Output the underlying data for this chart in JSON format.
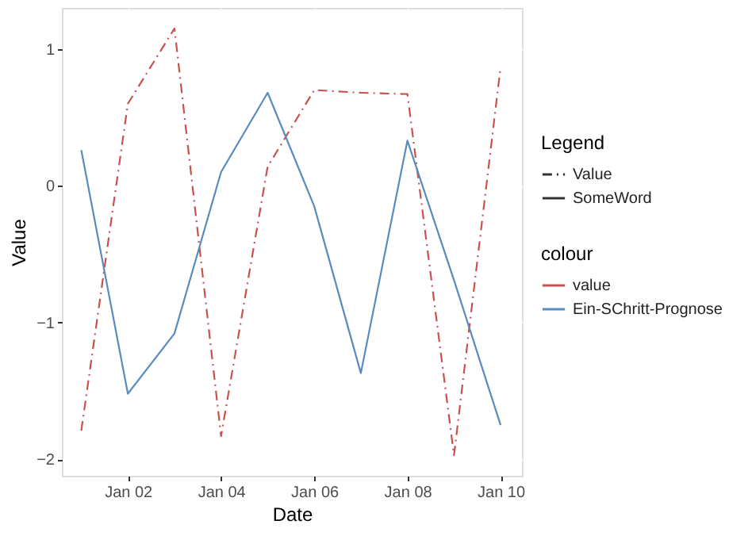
{
  "chart_data": {
    "type": "line",
    "xlabel": "Date",
    "ylabel": "Value",
    "legend_title": [
      "Legend",
      "colour"
    ],
    "annotations": [
      "Value",
      "SomeWord"
    ],
    "x": [
      "--01-01",
      "--01-02",
      "--01-03",
      "--01-04",
      "--01-05",
      "--01-06",
      "--01-07",
      "--01-08",
      "--01-09",
      "--01-10"
    ],
    "series": [
      {
        "name": "value",
        "line_style": "dashdot",
        "color": "#c8524f",
        "values": [
          -1.79,
          0.6,
          1.15,
          -1.83,
          0.14,
          0.7,
          0.68,
          0.67,
          -1.97,
          0.87
        ]
      },
      {
        "name": "Ein-SChritt-Prognose",
        "line_style": "solid",
        "color": "#5a8bbf",
        "values": [
          0.26,
          -1.52,
          -1.08,
          0.1,
          0.68,
          -0.15,
          -1.37,
          0.33,
          -0.69,
          -1.75
        ]
      }
    ],
    "xlim": [
      "2000-12-31T14:00",
      "--01-10T11:00"
    ],
    "xticks": [
      {
        "value": "--01-02",
        "label": "Jan 02"
      },
      {
        "value": "--01-04",
        "label": "Jan 04"
      },
      {
        "value": "--01-06",
        "label": "Jan 06"
      },
      {
        "value": "--01-08",
        "label": "Jan 08"
      },
      {
        "value": "--01-10",
        "label": "Jan 10"
      }
    ],
    "ylim": [
      -2.12,
      1.3
    ],
    "yticks": [
      -2,
      -1,
      0,
      1
    ],
    "grid": true,
    "legend": "right"
  }
}
